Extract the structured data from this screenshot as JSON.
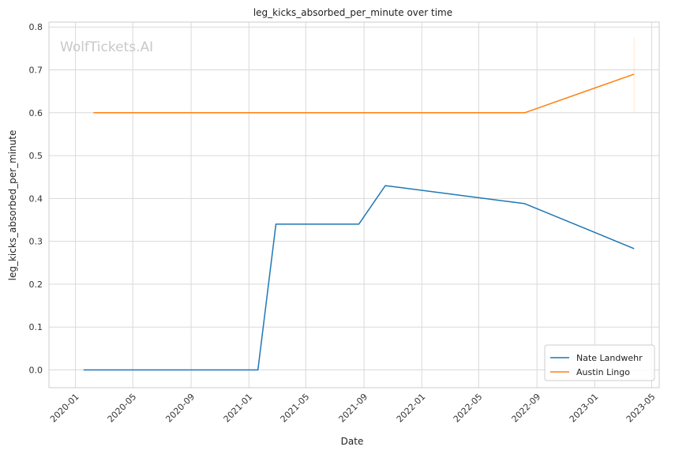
{
  "chart_data": {
    "type": "line",
    "title": "leg_kicks_absorbed_per_minute over time",
    "xlabel": "Date",
    "ylabel": "leg_kicks_absorbed_per_minute",
    "xlim": [
      "2019-11-06",
      "2023-05-17"
    ],
    "ylim": [
      -0.0415,
      0.8115
    ],
    "x_ticks": [
      "2020-01",
      "2020-05",
      "2020-09",
      "2021-01",
      "2021-05",
      "2021-09",
      "2022-01",
      "2022-05",
      "2022-09",
      "2023-01",
      "2023-05"
    ],
    "y_ticks": [
      "0.0",
      "0.1",
      "0.2",
      "0.3",
      "0.4",
      "0.5",
      "0.6",
      "0.7",
      "0.8"
    ],
    "grid": true,
    "legend_position": "lower-right",
    "watermark": "WolfTickets.AI",
    "series": [
      {
        "name": "Nate Landwehr",
        "color": "#1f77b4",
        "points": [
          {
            "x": "2020-01-18",
            "y": 0.0
          },
          {
            "x": "2021-01-20",
            "y": 0.0
          },
          {
            "x": "2021-02-27",
            "y": 0.34
          },
          {
            "x": "2021-08-21",
            "y": 0.34
          },
          {
            "x": "2021-10-16",
            "y": 0.43
          },
          {
            "x": "2022-08-06",
            "y": 0.388
          },
          {
            "x": "2023-03-25",
            "y": 0.283
          }
        ]
      },
      {
        "name": "Austin Lingo",
        "color": "#ff7f0e",
        "points": [
          {
            "x": "2020-02-08",
            "y": 0.6
          },
          {
            "x": "2022-08-06",
            "y": 0.6
          },
          {
            "x": "2023-03-25",
            "y": 0.69
          }
        ]
      }
    ]
  }
}
